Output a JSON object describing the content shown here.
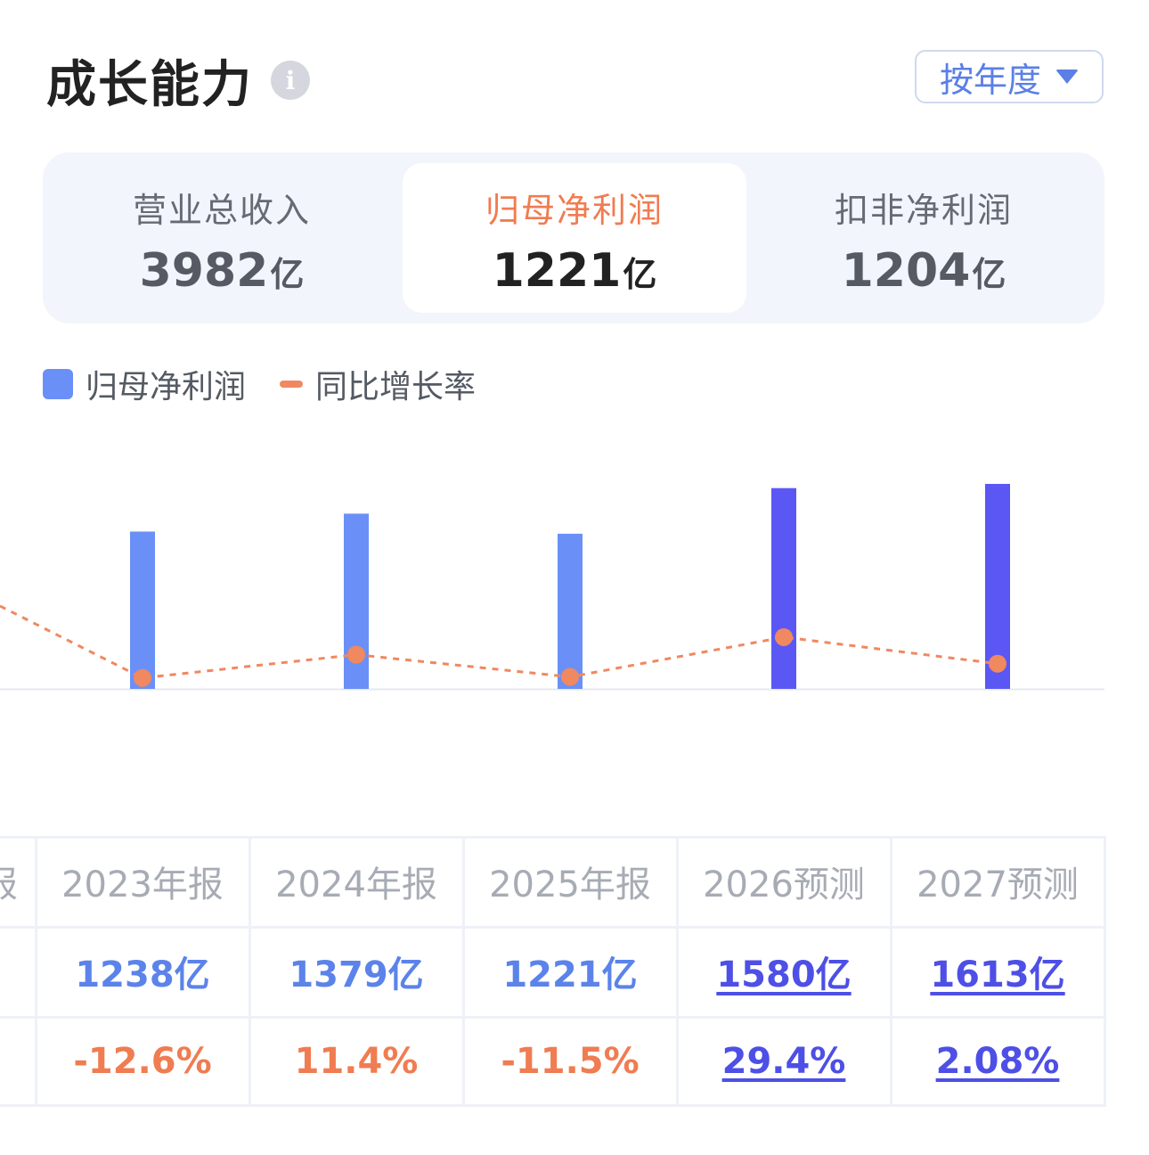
{
  "header": {
    "title": "成长能力",
    "info_icon": "info-icon",
    "period_label": "按年度"
  },
  "metrics": [
    {
      "label": "营业总收入",
      "value": "3982",
      "unit": "亿"
    },
    {
      "label": "归母净利润",
      "value": "1221",
      "unit": "亿",
      "active": true
    },
    {
      "label": "扣非净利润",
      "value": "1204",
      "unit": "亿"
    }
  ],
  "legend": {
    "bar": "归母净利润",
    "line": "同比增长率"
  },
  "colors": {
    "bar": "#6a90f7",
    "bar_forecast": "#5b57f5",
    "line": "#f08860",
    "active_label": "#f07c51"
  },
  "chart_data": {
    "type": "bar",
    "categories": [
      "2023年报",
      "2024年报",
      "2025年报",
      "2026预测",
      "2027预测"
    ],
    "series": [
      {
        "name": "归母净利润",
        "type": "bar",
        "values": [
          1238,
          1379,
          1221,
          1580,
          1613
        ],
        "unit": "亿"
      },
      {
        "name": "同比增长率",
        "type": "line",
        "values": [
          -12.6,
          11.4,
          -11.5,
          29.4,
          2.08
        ],
        "unit": "%"
      }
    ],
    "forecast_from_index": 3,
    "legend_position": "top-left",
    "grid": false
  },
  "table": {
    "partial_header": "报",
    "headers": [
      "2023年报",
      "2024年报",
      "2025年报",
      "2026预测",
      "2027预测"
    ],
    "values": [
      "1238亿",
      "1379亿",
      "1221亿",
      "1580亿",
      "1613亿"
    ],
    "growth": [
      "-12.6%",
      "11.4%",
      "-11.5%",
      "29.4%",
      "2.08%"
    ]
  }
}
